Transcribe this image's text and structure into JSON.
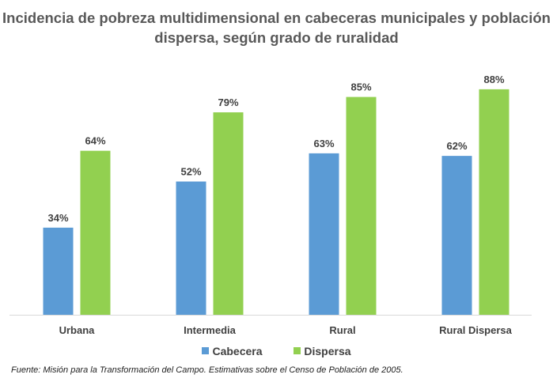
{
  "chart_data": {
    "type": "bar",
    "title": "Incidencia de pobreza multidimensional en cabeceras municipales y población dispersa, según grado de ruralidad",
    "categories": [
      "Urbana",
      "Intermedia",
      "Rural",
      "Rural Dispersa"
    ],
    "series": [
      {
        "name": "Cabecera",
        "values": [
          34,
          52,
          63,
          62
        ],
        "labels": [
          "34%",
          "52%",
          "63%",
          "62%"
        ],
        "color": "#5B9BD5"
      },
      {
        "name": "Dispersa",
        "values": [
          64,
          79,
          85,
          88
        ],
        "labels": [
          "64%",
          "79%",
          "85%",
          "88%"
        ],
        "color": "#92D050"
      }
    ],
    "ylim": [
      0,
      100
    ],
    "grid": false,
    "legend": "bottom",
    "source": "Fuente: Misión para la Transformación del Campo. Estimativas sobre el Censo de Población de 2005."
  }
}
